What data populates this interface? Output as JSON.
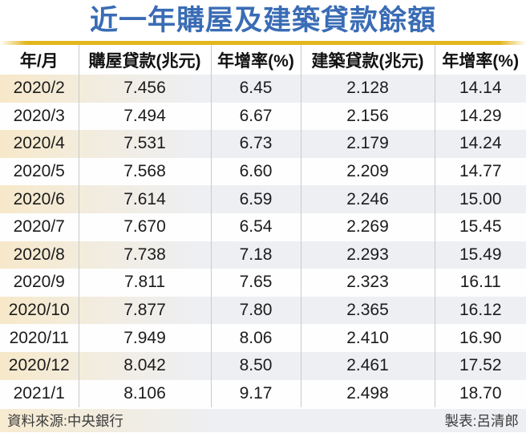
{
  "title": "近一年購屋及建築貸款餘額",
  "footer": {
    "source": "資料來源:中央銀行",
    "credit": "製表:呂清郎"
  },
  "colors": {
    "title_blue": "#3a6cb5",
    "gold_bar": "#e2b61e",
    "shaded_row_cream": "#f7e8c9",
    "shaded_row_gray": "#edeff3",
    "separator_gray": "#c9c9c9",
    "text_black": "#1c1c1c"
  },
  "chart_data": {
    "type": "table",
    "title": "近一年購屋及建築貸款餘額",
    "columns": [
      "年/月",
      "購屋貸款(兆元)",
      "年增率(%)",
      "建築貸款(兆元)",
      "年增率(%)"
    ],
    "rows": [
      [
        "2020/2",
        "7.456",
        "6.45",
        "2.128",
        "14.14"
      ],
      [
        "2020/3",
        "7.494",
        "6.67",
        "2.156",
        "14.29"
      ],
      [
        "2020/4",
        "7.531",
        "6.73",
        "2.179",
        "14.24"
      ],
      [
        "2020/5",
        "7.568",
        "6.60",
        "2.209",
        "14.77"
      ],
      [
        "2020/6",
        "7.614",
        "6.59",
        "2.246",
        "15.00"
      ],
      [
        "2020/7",
        "7.670",
        "6.54",
        "2.269",
        "15.45"
      ],
      [
        "2020/8",
        "7.738",
        "7.18",
        "2.293",
        "15.49"
      ],
      [
        "2020/9",
        "7.811",
        "7.65",
        "2.323",
        "16.11"
      ],
      [
        "2020/10",
        "7.877",
        "7.80",
        "2.365",
        "16.12"
      ],
      [
        "2020/11",
        "7.949",
        "8.06",
        "2.410",
        "16.90"
      ],
      [
        "2020/12",
        "8.042",
        "8.50",
        "2.461",
        "17.52"
      ],
      [
        "2021/1",
        "8.106",
        "9.17",
        "2.498",
        "18.70"
      ]
    ]
  }
}
